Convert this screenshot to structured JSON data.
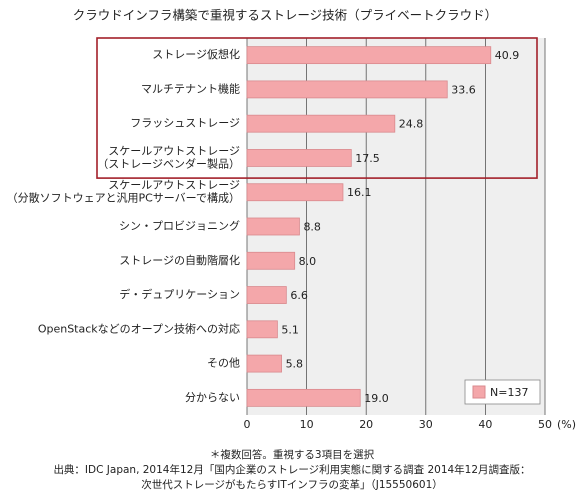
{
  "chart_data": {
    "type": "hbar",
    "title": "クラウドインフラ構築で重視するストレージ技術（プライベートクラウド）",
    "categories": [
      "ストレージ仮想化",
      "マルチテナント機能",
      "フラッシュストレージ",
      "スケールアウトストレージ\n（ストレージベンダー製品）",
      "スケールアウトストレージ\n（分散ソフトウェアと汎用PCサーバーで構成）",
      "シン・プロビジョニング",
      "ストレージの自動階層化",
      "デ・デュプリケーション",
      "OpenStackなどのオープン技術への対応",
      "その他",
      "分からない"
    ],
    "series": [
      {
        "name": "N=137",
        "color": "#f4a7aa",
        "values": [
          40.9,
          33.6,
          24.8,
          17.5,
          16.1,
          8.8,
          8.0,
          6.6,
          5.1,
          5.8,
          19.0
        ],
        "value_labels": [
          "40.9",
          "33.6",
          "24.8",
          "17.5",
          "16.1",
          "8.8",
          "8.0",
          "6.6",
          "5.1",
          "5.8",
          "19.0"
        ]
      }
    ],
    "xlim": [
      0,
      50
    ],
    "xticks": [
      0,
      10,
      20,
      30,
      40,
      50
    ],
    "x_unit": "(%)",
    "grid": true,
    "legend": "lower right",
    "notes": [
      "＊複数回答。重視する3項目を選択",
      "出典：IDC Japan, 2014年12月「国内企業のストレージ利用実態に関する調査 2014年12月調査版：",
      "次世代ストレージがもたらすITインフラの変革」（J15550601）"
    ]
  }
}
